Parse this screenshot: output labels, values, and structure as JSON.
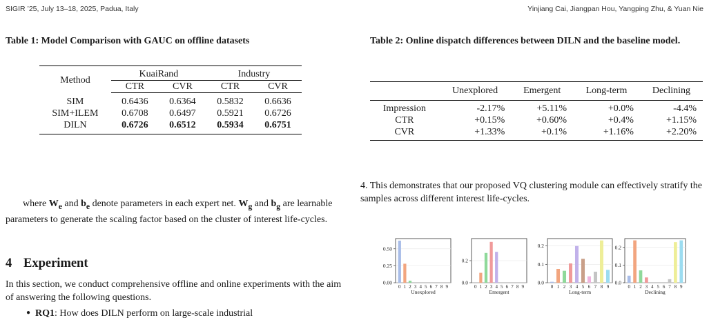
{
  "header": {
    "left": "SIGIR ’25, July 13–18, 2025, Padua, Italy",
    "right": "Yinjiang Cai, Jiangpan Hou, Yangping Zhu, & Yuan Nie"
  },
  "table1": {
    "caption": "Table 1: Model Comparison with GAUC on offline datasets",
    "method_header": "Method",
    "groups": [
      "KuaiRand",
      "Industry"
    ],
    "subheaders": [
      "CTR",
      "CVR",
      "CTR",
      "CVR"
    ],
    "rows": [
      {
        "method": "SIM",
        "values": [
          "0.6436",
          "0.6364",
          "0.5832",
          "0.6636"
        ]
      },
      {
        "method": "SIM+ILEM",
        "values": [
          "0.6708",
          "0.6497",
          "0.5921",
          "0.6726"
        ]
      },
      {
        "method": "DILN",
        "values": [
          "0.6726",
          "0.6512",
          "0.5934",
          "0.6751"
        ]
      }
    ]
  },
  "table2": {
    "caption": "Table 2: Online dispatch differences between DILN and the baseline model.",
    "columns": [
      "Unexplored",
      "Emergent",
      "Long-term",
      "Declining"
    ],
    "rows": [
      {
        "label": "Impression",
        "values": [
          "-2.17%",
          "+5.11%",
          "+0.0%",
          "-4.4%"
        ]
      },
      {
        "label": "CTR",
        "values": [
          "+0.15%",
          "+0.60%",
          "+0.4%",
          "+1.15%"
        ]
      },
      {
        "label": "CVR",
        "values": [
          "+1.33%",
          "+0.1%",
          "+1.16%",
          "+2.20%"
        ]
      }
    ]
  },
  "text": {
    "p_left_1": "where ",
    "W": "W",
    "sub_e": "e",
    "and": " and ",
    "b": "b",
    "p_left_2": " denote parameters in each expert net. ",
    "sub_g": "g",
    "p_left_3": " are learnable parameters to generate the scaling factor based on the cluster of interest life-cycles.",
    "p_right": "4. This demonstrates that our proposed VQ clustering module can effectively stratify the samples across different interest life-cycles.",
    "section_number": "4",
    "section_title": "Experiment",
    "section_body": "In this section, we conduct comprehensive offline and online experiments with the aim of answering the following questions.",
    "bullet_label": "RQ1",
    "bullet_text": ": How does DILN perform on large-scale industrial"
  },
  "chart_data": [
    {
      "type": "bar",
      "xlabel": "Unexplored",
      "categories": [
        "0",
        "1",
        "2",
        "3",
        "4",
        "5",
        "6",
        "7",
        "8",
        "9"
      ],
      "values": [
        0.62,
        0.28,
        0.03,
        0.0,
        0.0,
        0.0,
        0.0,
        0.0,
        0.0,
        0.0
      ],
      "ylim": [
        0,
        0.65
      ],
      "yticks": [
        0,
        0.25,
        0.5
      ],
      "ytick_labels": [
        "0.00",
        "0.25",
        "0.50"
      ]
    },
    {
      "type": "bar",
      "xlabel": "Emergent",
      "categories": [
        "0",
        "1",
        "2",
        "3",
        "4",
        "5",
        "6",
        "7",
        "8",
        "9"
      ],
      "values": [
        0.0,
        0.09,
        0.27,
        0.37,
        0.28,
        0.0,
        0.0,
        0.0,
        0.0,
        0.0
      ],
      "ylim": [
        0,
        0.4
      ],
      "yticks": [
        0,
        0.2
      ],
      "ytick_labels": [
        "0.0",
        "0.2"
      ]
    },
    {
      "type": "bar",
      "xlabel": "Long-term",
      "categories": [
        "0",
        "1",
        "2",
        "3",
        "4",
        "5",
        "6",
        "7",
        "8",
        "9"
      ],
      "values": [
        0.005,
        0.075,
        0.065,
        0.105,
        0.2,
        0.13,
        0.035,
        0.06,
        0.23,
        0.07
      ],
      "ylim": [
        0,
        0.24
      ],
      "yticks": [
        0,
        0.1,
        0.2
      ],
      "ytick_labels": [
        "0.0",
        "0.1",
        "0.2"
      ]
    },
    {
      "type": "bar",
      "xlabel": "Declining",
      "categories": [
        "0",
        "1",
        "2",
        "3",
        "4",
        "5",
        "6",
        "7",
        "8",
        "9"
      ],
      "values": [
        0.04,
        0.24,
        0.07,
        0.03,
        0.0,
        0.0,
        0.0,
        0.02,
        0.23,
        0.24
      ],
      "ylim": [
        0,
        0.25
      ],
      "yticks": [
        0,
        0.1,
        0.2
      ],
      "ytick_labels": [
        "0.0",
        "0.1",
        "0.2"
      ]
    }
  ],
  "bar_colors": [
    "#a9bde8",
    "#f2a57f",
    "#8fd99a",
    "#f09a9a",
    "#c1b1ea",
    "#c99f88",
    "#f0b4de",
    "#c4c4c4",
    "#eeee98",
    "#9cdcf0"
  ]
}
